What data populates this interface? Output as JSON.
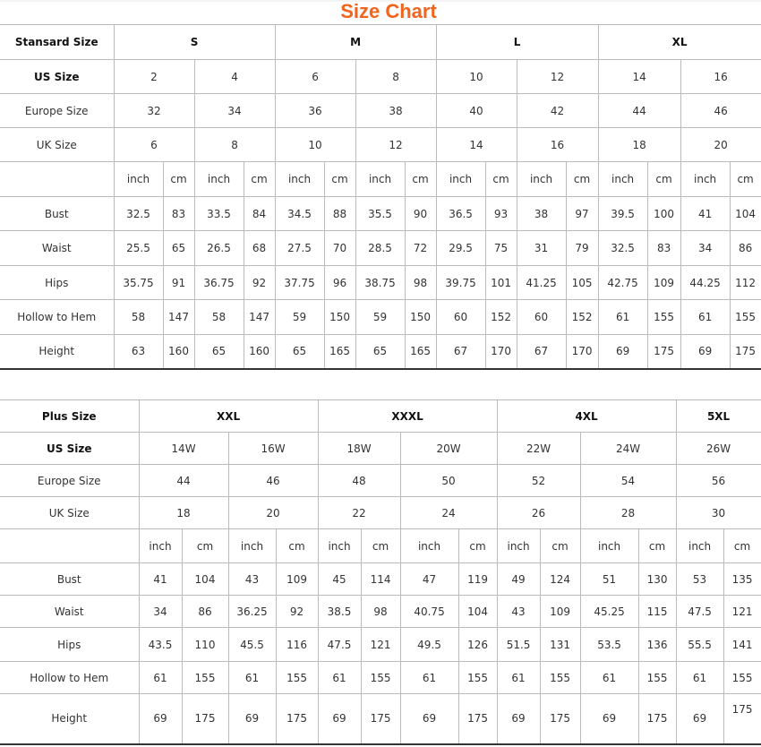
{
  "title": "Size Chart",
  "standard": {
    "col_widths": [
      127,
      55,
      35,
      55,
      35,
      55,
      35,
      55,
      35,
      55,
      35,
      55,
      36,
      55,
      37,
      55,
      35
    ],
    "header": {
      "label": "Stansard Size",
      "groups": [
        "S",
        "M",
        "L",
        "XL"
      ]
    },
    "us": {
      "label": "US Size",
      "values": [
        "2",
        "4",
        "6",
        "8",
        "10",
        "12",
        "14",
        "16"
      ]
    },
    "europe": {
      "label": "Europe Size",
      "values": [
        "32",
        "34",
        "36",
        "38",
        "40",
        "42",
        "44",
        "46"
      ]
    },
    "uk": {
      "label": "UK Size",
      "values": [
        "6",
        "8",
        "10",
        "12",
        "14",
        "16",
        "18",
        "20"
      ]
    },
    "units": [
      "inch",
      "cm"
    ],
    "measurements": [
      {
        "label": "Bust",
        "values": [
          "32.5",
          "83",
          "33.5",
          "84",
          "34.5",
          "88",
          "35.5",
          "90",
          "36.5",
          "93",
          "38",
          "97",
          "39.5",
          "100",
          "41",
          "104"
        ]
      },
      {
        "label": "Waist",
        "values": [
          "25.5",
          "65",
          "26.5",
          "68",
          "27.5",
          "70",
          "28.5",
          "72",
          "29.5",
          "75",
          "31",
          "79",
          "32.5",
          "83",
          "34",
          "86"
        ]
      },
      {
        "label": "Hips",
        "values": [
          "35.75",
          "91",
          "36.75",
          "92",
          "37.75",
          "96",
          "38.75",
          "98",
          "39.75",
          "101",
          "41.25",
          "105",
          "42.75",
          "109",
          "44.25",
          "112"
        ]
      },
      {
        "label": "Hollow to Hem",
        "values": [
          "58",
          "147",
          "58",
          "147",
          "59",
          "150",
          "59",
          "150",
          "60",
          "152",
          "60",
          "152",
          "61",
          "155",
          "61",
          "155"
        ]
      },
      {
        "label": "Height",
        "values": [
          "63",
          "160",
          "65",
          "160",
          "65",
          "165",
          "65",
          "165",
          "67",
          "170",
          "67",
          "170",
          "69",
          "175",
          "69",
          "175"
        ]
      }
    ]
  },
  "plus": {
    "col_widths": [
      155,
      48,
      52,
      53,
      47,
      48,
      44,
      65,
      43,
      48,
      45,
      65,
      42,
      53,
      42
    ],
    "header": {
      "label": "Plus Size",
      "groups": [
        "XXL",
        "XXXL",
        "4XL",
        "5XL"
      ]
    },
    "us": {
      "label": "US Size",
      "values": [
        "14W",
        "16W",
        "18W",
        "20W",
        "22W",
        "24W",
        "26W"
      ]
    },
    "europe": {
      "label": "Europe Size",
      "values": [
        "44",
        "46",
        "48",
        "50",
        "52",
        "54",
        "56"
      ]
    },
    "uk": {
      "label": "UK Size",
      "values": [
        "18",
        "20",
        "22",
        "24",
        "26",
        "28",
        "30"
      ]
    },
    "units": [
      "inch",
      "cm"
    ],
    "measurements": [
      {
        "label": "Bust",
        "values": [
          "41",
          "104",
          "43",
          "109",
          "45",
          "114",
          "47",
          "119",
          "49",
          "124",
          "51",
          "130",
          "53",
          "135"
        ]
      },
      {
        "label": "Waist",
        "values": [
          "34",
          "86",
          "36.25",
          "92",
          "38.5",
          "98",
          "40.75",
          "104",
          "43",
          "109",
          "45.25",
          "115",
          "47.5",
          "121"
        ]
      },
      {
        "label": "Hips",
        "values": [
          "43.5",
          "110",
          "45.5",
          "116",
          "47.5",
          "121",
          "49.5",
          "126",
          "51.5",
          "131",
          "53.5",
          "136",
          "55.5",
          "141"
        ]
      },
      {
        "label": "Hollow to Hem",
        "values": [
          "61",
          "155",
          "61",
          "155",
          "61",
          "155",
          "61",
          "155",
          "61",
          "155",
          "61",
          "155",
          "61",
          "155"
        ]
      },
      {
        "label": "Height",
        "values": [
          "69",
          "175",
          "69",
          "175",
          "69",
          "175",
          "69",
          "175",
          "69",
          "175",
          "69",
          "175",
          "69",
          "175"
        ]
      }
    ]
  }
}
